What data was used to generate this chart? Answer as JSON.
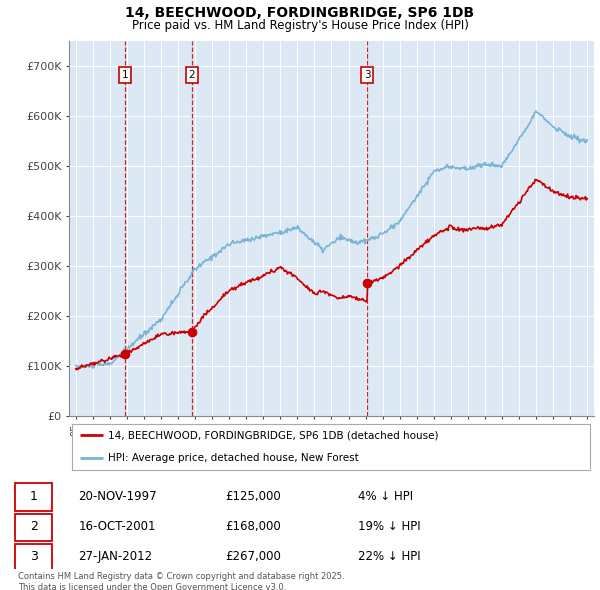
{
  "title": "14, BEECHWOOD, FORDINGBRIDGE, SP6 1DB",
  "subtitle": "Price paid vs. HM Land Registry's House Price Index (HPI)",
  "ylim": [
    0,
    750000
  ],
  "yticks": [
    0,
    100000,
    200000,
    300000,
    400000,
    500000,
    600000,
    700000
  ],
  "ytick_labels": [
    "£0",
    "£100K",
    "£200K",
    "£300K",
    "£400K",
    "£500K",
    "£600K",
    "£700K"
  ],
  "hpi_color": "#7ab3d4",
  "price_color": "#cc0000",
  "vline_color": "#cc0000",
  "plot_bg_color": "#dce9f5",
  "legend1": "14, BEECHWOOD, FORDINGBRIDGE, SP6 1DB (detached house)",
  "legend2": "HPI: Average price, detached house, New Forest",
  "transactions": [
    {
      "num": 1,
      "date": "20-NOV-1997",
      "price": "£125,000",
      "hpi": "4% ↓ HPI",
      "year": 1997.9
    },
    {
      "num": 2,
      "date": "16-OCT-2001",
      "price": "£168,000",
      "hpi": "19% ↓ HPI",
      "year": 2001.8
    },
    {
      "num": 3,
      "date": "27-JAN-2012",
      "price": "£267,000",
      "hpi": "22% ↓ HPI",
      "year": 2012.1
    }
  ],
  "transaction_values": [
    125000,
    168000,
    267000
  ],
  "transaction_years": [
    1997.9,
    2001.8,
    2012.1
  ],
  "footer": "Contains HM Land Registry data © Crown copyright and database right 2025.\nThis data is licensed under the Open Government Licence v3.0.",
  "xstart": 1995,
  "xend": 2025
}
